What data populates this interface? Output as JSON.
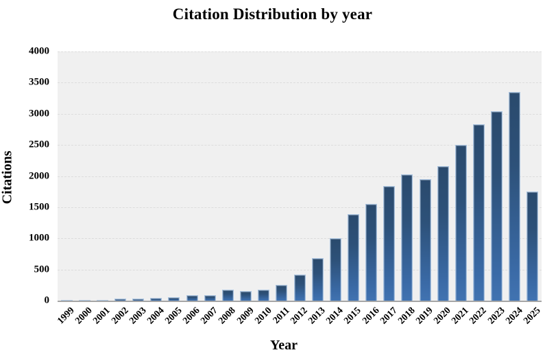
{
  "figure": {
    "title": "Citation Distribution by year",
    "x_axis_label": "Year",
    "y_axis_label": "Citations"
  },
  "chart_data": {
    "type": "bar",
    "title": "Citation Distribution by year",
    "xlabel": "Year",
    "ylabel": "Citations",
    "categories": [
      "1999",
      "2000",
      "2001",
      "2002",
      "2003",
      "2004",
      "2005",
      "2006",
      "2007",
      "2008",
      "2009",
      "2010",
      "2011",
      "2012",
      "2013",
      "2014",
      "2015",
      "2016",
      "2017",
      "2018",
      "2019",
      "2020",
      "2021",
      "2022",
      "2023",
      "2024",
      "2025"
    ],
    "values": [
      15,
      3,
      15,
      30,
      33,
      42,
      60,
      88,
      84,
      178,
      158,
      172,
      258,
      415,
      685,
      1005,
      1390,
      1555,
      1835,
      2030,
      1955,
      2155,
      2505,
      2835,
      3040,
      3355,
      1755
    ],
    "ylim": [
      0,
      4000
    ],
    "y_ticks": [
      0,
      500,
      1000,
      1500,
      2000,
      2500,
      3000,
      3500,
      4000
    ],
    "grid": "horizontal-dashed",
    "legend": "none",
    "colors": {
      "bar_gradient_top": "#2a4a6d",
      "bar_gradient_bottom": "#4173b1",
      "bar_border": "#a9c3e0",
      "plot_background": "#f0f0f0",
      "gridline": "#dcdcdc",
      "axis_line": "#a6a6a6",
      "text": "#000000",
      "page_background": "#ffffff"
    }
  }
}
